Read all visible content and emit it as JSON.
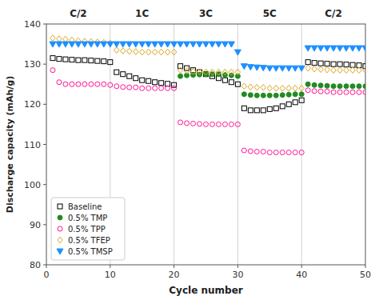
{
  "chart_data": {
    "type": "scatter",
    "xlabel": "Cycle number",
    "ylabel": "Discharge capacity  (mAh/g)",
    "xlim": [
      0,
      50
    ],
    "ylim": [
      80,
      140
    ],
    "xticks": [
      0,
      10,
      20,
      30,
      40,
      50
    ],
    "yticks": [
      80,
      90,
      100,
      110,
      120,
      130,
      140
    ],
    "grid": false,
    "legend": "lower left",
    "vlines": [
      10,
      20,
      30,
      40
    ],
    "annotations": [
      {
        "x": 5,
        "text": "C/2"
      },
      {
        "x": 15,
        "text": "1C"
      },
      {
        "x": 25,
        "text": "3C"
      },
      {
        "x": 35,
        "text": "5C"
      },
      {
        "x": 45,
        "text": "C/2"
      }
    ],
    "series": [
      {
        "name": "Baseline",
        "color": "black",
        "marker": "square-open",
        "x": [
          1,
          2,
          3,
          4,
          5,
          6,
          7,
          8,
          9,
          10,
          11,
          12,
          13,
          14,
          15,
          16,
          17,
          18,
          19,
          20,
          21,
          22,
          23,
          24,
          25,
          26,
          27,
          28,
          29,
          30,
          31,
          32,
          33,
          34,
          35,
          36,
          37,
          38,
          39,
          40,
          41,
          42,
          43,
          44,
          45,
          46,
          47,
          48,
          49,
          50
        ],
        "values": [
          131.5,
          131.3,
          131.2,
          131.1,
          131.0,
          131.0,
          130.9,
          130.8,
          130.7,
          130.5,
          128.0,
          127.5,
          127.0,
          126.5,
          126.0,
          125.8,
          125.5,
          125.3,
          125.1,
          124.8,
          129.5,
          129.0,
          128.5,
          128.0,
          127.5,
          127.0,
          126.5,
          126.0,
          125.5,
          125.0,
          119.0,
          118.5,
          118.5,
          118.5,
          118.8,
          119.0,
          119.5,
          120.0,
          120.5,
          121.0,
          130.5,
          130.3,
          130.2,
          130.1,
          130.0,
          130.0,
          129.9,
          129.8,
          129.7,
          129.5
        ]
      },
      {
        "name": "0.5% TMP",
        "color": "#228B22",
        "marker": "circle",
        "x": [
          21,
          22,
          23,
          24,
          25,
          26,
          27,
          28,
          29,
          30,
          31,
          32,
          33,
          34,
          35,
          36,
          37,
          38,
          39,
          40,
          41,
          42,
          43,
          44,
          45,
          46,
          47,
          48,
          49,
          50
        ],
        "values": [
          127.0,
          127.2,
          127.3,
          127.4,
          127.5,
          127.5,
          127.5,
          127.3,
          127.2,
          127.0,
          122.5,
          122.3,
          122.2,
          122.2,
          122.2,
          122.2,
          122.3,
          122.4,
          122.5,
          122.5,
          125.0,
          124.8,
          124.7,
          124.6,
          124.5,
          124.5,
          124.5,
          124.5,
          124.5,
          124.5
        ]
      },
      {
        "name": "0.5% TPP",
        "color": "#FF1493",
        "marker": "circle-open",
        "x": [
          1,
          2,
          3,
          4,
          5,
          6,
          7,
          8,
          9,
          10,
          11,
          12,
          13,
          14,
          15,
          16,
          17,
          18,
          19,
          20,
          21,
          22,
          23,
          24,
          25,
          26,
          27,
          28,
          29,
          30,
          31,
          32,
          33,
          34,
          35,
          36,
          37,
          38,
          39,
          40,
          41,
          42,
          43,
          44,
          45,
          46,
          47,
          48,
          49,
          50
        ],
        "values": [
          128.5,
          125.5,
          125.0,
          125.0,
          125.0,
          125.0,
          125.0,
          125.0,
          125.0,
          124.8,
          124.5,
          124.3,
          124.2,
          124.2,
          124.0,
          124.0,
          124.0,
          124.0,
          124.0,
          124.0,
          115.5,
          115.3,
          115.2,
          115.1,
          115.0,
          115.0,
          115.0,
          115.0,
          115.0,
          115.0,
          108.5,
          108.3,
          108.2,
          108.2,
          108.0,
          108.0,
          108.0,
          108.0,
          108.0,
          108.0,
          123.5,
          123.3,
          123.2,
          123.2,
          123.0,
          123.0,
          123.0,
          123.0,
          123.0,
          123.0
        ]
      },
      {
        "name": "0.5% TFEP",
        "color": "#DAA520",
        "marker": "diamond-open",
        "x": [
          1,
          2,
          3,
          4,
          5,
          6,
          7,
          8,
          9,
          10,
          11,
          12,
          13,
          14,
          15,
          16,
          17,
          18,
          19,
          20,
          21,
          22,
          23,
          24,
          25,
          26,
          27,
          28,
          29,
          30,
          31,
          32,
          33,
          34,
          35,
          36,
          37,
          38,
          39,
          40,
          41,
          42,
          43,
          44,
          45,
          46,
          47,
          48,
          49,
          50
        ],
        "values": [
          136.5,
          136.3,
          136.2,
          136.0,
          135.8,
          135.7,
          135.6,
          135.5,
          135.4,
          135.2,
          133.5,
          133.3,
          133.2,
          133.1,
          133.0,
          133.0,
          133.0,
          133.0,
          133.0,
          133.0,
          128.5,
          128.3,
          128.2,
          128.1,
          128.0,
          128.0,
          128.0,
          128.0,
          128.0,
          128.0,
          124.5,
          124.3,
          124.2,
          124.2,
          124.0,
          124.0,
          124.0,
          124.0,
          124.0,
          124.0,
          129.0,
          128.8,
          128.7,
          128.6,
          128.5,
          128.5,
          128.5,
          128.5,
          128.5,
          128.5
        ]
      },
      {
        "name": "0.5% TMSP",
        "color": "#1E90FF",
        "marker": "triangle-down",
        "x": [
          1,
          2,
          3,
          4,
          5,
          6,
          7,
          8,
          9,
          10,
          11,
          12,
          13,
          14,
          15,
          16,
          17,
          18,
          19,
          20,
          21,
          22,
          23,
          24,
          25,
          26,
          27,
          28,
          29,
          30,
          31,
          32,
          33,
          34,
          35,
          36,
          37,
          38,
          39,
          40,
          41,
          42,
          43,
          44,
          45,
          46,
          47,
          48,
          49,
          50
        ],
        "values": [
          135.0,
          135.0,
          135.0,
          135.0,
          135.0,
          135.0,
          135.0,
          135.0,
          135.0,
          135.0,
          135.0,
          135.0,
          135.0,
          135.0,
          135.0,
          135.0,
          135.0,
          135.0,
          135.0,
          135.0,
          135.0,
          135.0,
          135.0,
          135.0,
          135.0,
          135.0,
          135.0,
          135.0,
          135.0,
          133.0,
          129.5,
          129.3,
          129.2,
          129.1,
          129.0,
          129.0,
          129.0,
          129.0,
          129.0,
          129.0,
          134.0,
          134.0,
          134.0,
          134.0,
          134.0,
          134.0,
          134.0,
          134.0,
          134.0,
          134.0
        ]
      }
    ]
  }
}
